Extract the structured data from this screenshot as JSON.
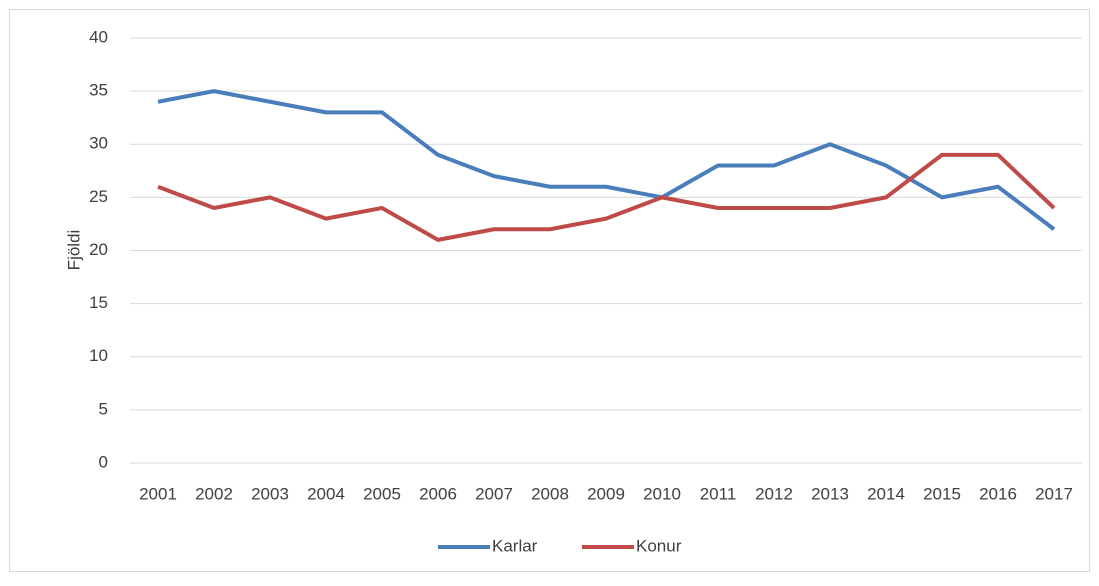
{
  "chart_data": {
    "type": "line",
    "y_label": "Fjöldi",
    "categories": [
      "2001",
      "2002",
      "2003",
      "2004",
      "2005",
      "2006",
      "2007",
      "2008",
      "2009",
      "2010",
      "2011",
      "2012",
      "2013",
      "2014",
      "2015",
      "2016",
      "2017"
    ],
    "series": [
      {
        "name": "Karlar",
        "color": "#4a7ebb",
        "values": [
          34,
          35,
          34,
          33,
          33,
          29,
          27,
          26,
          26,
          25,
          28,
          28,
          30,
          28,
          25,
          26,
          22
        ]
      },
      {
        "name": "Konur",
        "color": "#be4b48",
        "values": [
          26,
          24,
          25,
          23,
          24,
          21,
          22,
          22,
          23,
          25,
          24,
          24,
          24,
          25,
          29,
          29,
          24
        ]
      }
    ],
    "ylim": [
      0,
      40
    ],
    "yticks": [
      0,
      5,
      10,
      15,
      20,
      25,
      30,
      35,
      40
    ],
    "grid": true,
    "legend": "bottom"
  }
}
